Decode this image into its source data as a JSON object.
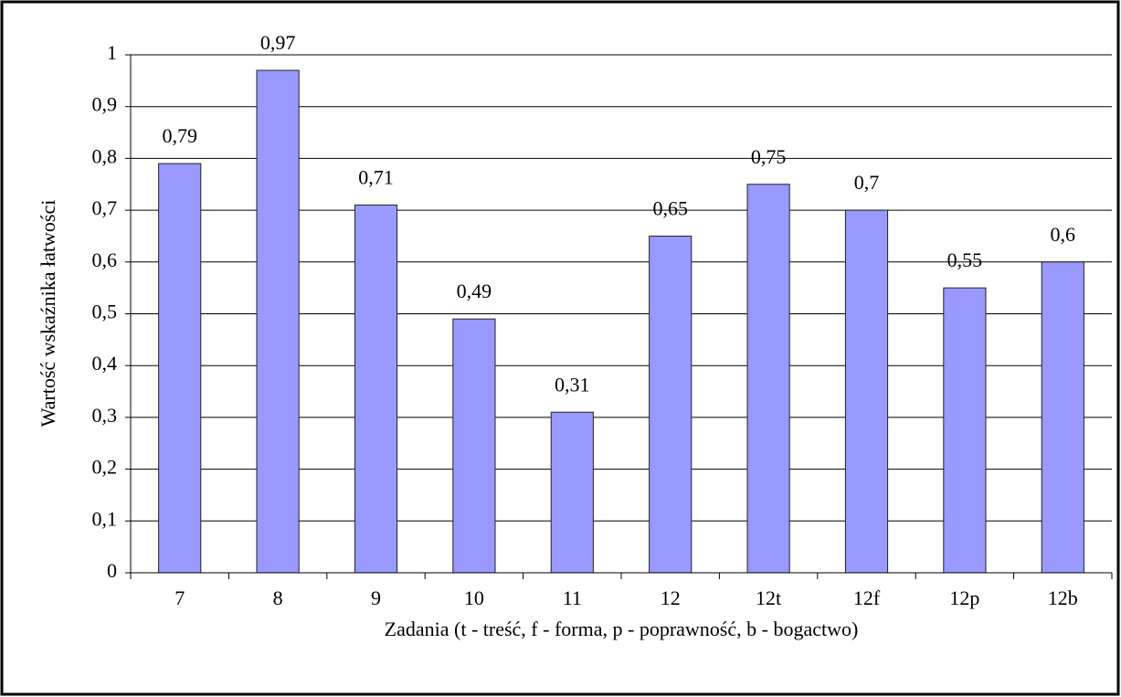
{
  "chart_data": {
    "type": "bar",
    "y_label": "Wartość wskaźnika łatwości",
    "x_label": "Zadania (t - treść, f - forma, p - poprawność, b - bogactwo)",
    "categories": [
      "7",
      "8",
      "9",
      "10",
      "11",
      "12",
      "12t",
      "12f",
      "12p",
      "12b"
    ],
    "values": [
      0.79,
      0.97,
      0.71,
      0.49,
      0.31,
      0.65,
      0.75,
      0.7,
      0.55,
      0.6
    ],
    "value_labels": [
      "0,79",
      "0,97",
      "0,71",
      "0,49",
      "0,31",
      "0,65",
      "0,75",
      "0,7",
      "0,55",
      "0,6"
    ],
    "color": "#9999ff",
    "ylim": [
      0,
      1
    ],
    "yticks": [
      0,
      {
        "value": 0.1,
        "label": "0,1"
      },
      {
        "value": 0.2,
        "label": "0,2"
      },
      {
        "value": 0.3,
        "label": "0,3"
      },
      {
        "value": 0.4,
        "label": "0,4"
      },
      {
        "value": 0.5,
        "label": "0,5"
      },
      {
        "value": 0.6,
        "label": "0,6"
      },
      {
        "value": 0.7,
        "label": "0,7"
      },
      {
        "value": 0.8,
        "label": "0,8"
      },
      {
        "value": 0.9,
        "label": "0,9"
      },
      1
    ],
    "grid": true
  }
}
